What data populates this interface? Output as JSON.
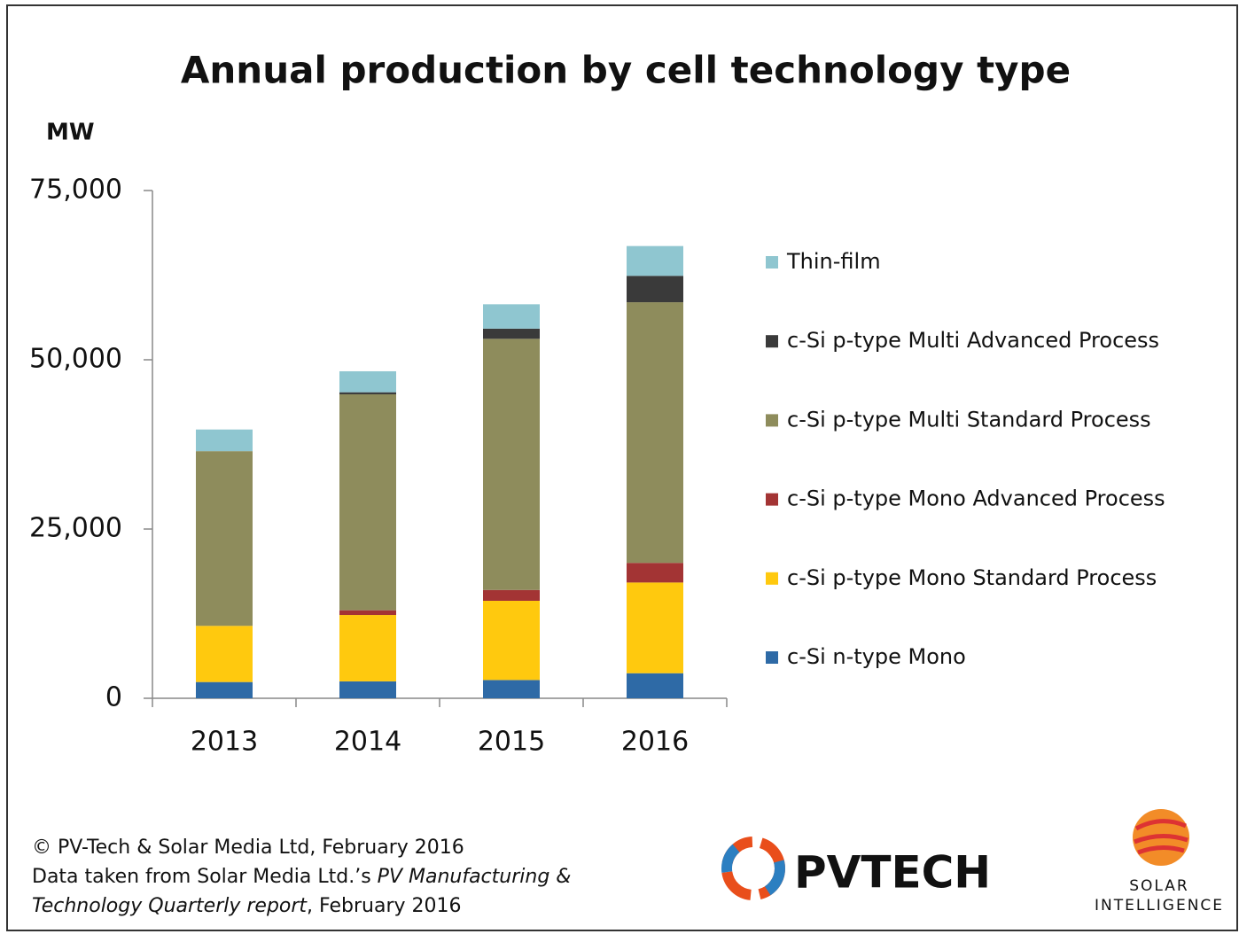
{
  "chart_data": {
    "type": "stacked_bar",
    "title": "Annual production by cell technology type",
    "y_label": "MW",
    "categories": [
      "2013",
      "2014",
      "2015",
      "2016"
    ],
    "series": [
      {
        "name": "c-Si n-type Mono",
        "color": "#2e6aa6",
        "values": [
          2400,
          2500,
          2700,
          3700
        ]
      },
      {
        "name": "c-Si p-type Mono Standard Process",
        "color": "#ffc90e",
        "values": [
          8300,
          9800,
          11700,
          13400
        ]
      },
      {
        "name": "c-Si p-type Mono Advanced Process",
        "color": "#a33434",
        "values": [
          0,
          700,
          1600,
          2900
        ]
      },
      {
        "name": "c-Si p-type Multi Standard Process",
        "color": "#8e8c5c",
        "values": [
          25800,
          31900,
          37100,
          38500
        ]
      },
      {
        "name": "c-Si p-type Multi Advanced Process",
        "color": "#3a3a3a",
        "values": [
          0,
          300,
          1500,
          3900
        ]
      },
      {
        "name": "Thin-film",
        "color": "#8fc6d0",
        "values": [
          3200,
          3100,
          3600,
          4400
        ]
      }
    ],
    "ylim": [
      0,
      75000
    ],
    "yticks": [
      0,
      {
        "value": 25000,
        "label": "25,000"
      },
      {
        "value": 50000,
        "label": "50,000"
      },
      {
        "value": 75000,
        "label": "75,000"
      }
    ],
    "footer": [
      [
        {
          "text": "© PV-Tech & Solar Media Ltd, February 2016",
          "italic": false
        }
      ],
      [
        {
          "text": "Data taken from Solar Media Ltd.’s ",
          "italic": false
        },
        {
          "text": "PV Manufacturing &",
          "italic": true
        }
      ],
      [
        {
          "text": "Technology Quarterly report",
          "italic": true
        },
        {
          "text": ", February 2016",
          "italic": false
        }
      ]
    ],
    "logos": {
      "pvtech": "PVTECH",
      "solar": "SOLAR",
      "intelligence": "INTELLIGENCE"
    }
  }
}
